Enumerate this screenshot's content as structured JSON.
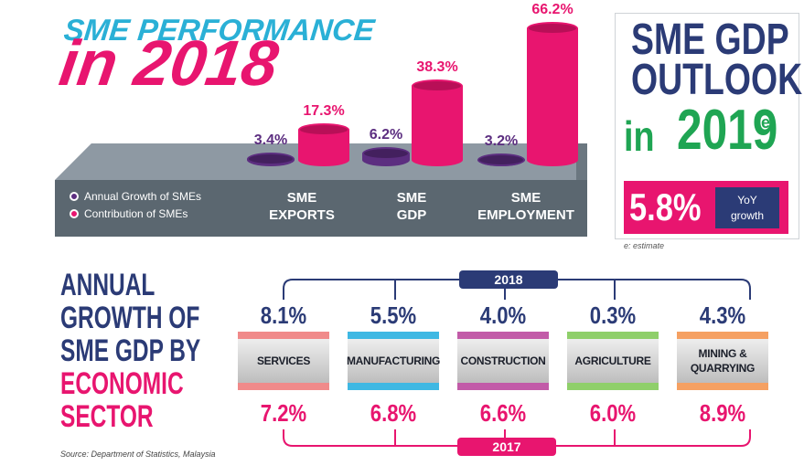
{
  "title": {
    "line1": "SME PERFORMANCE",
    "line2": "in 2018"
  },
  "chart_data": {
    "type": "bar",
    "categories": [
      "SME EXPORTS",
      "SME GDP",
      "SME EMPLOYMENT"
    ],
    "series": [
      {
        "name": "Annual Growth of SMEs",
        "values": [
          3.4,
          6.2,
          3.2
        ],
        "labels": [
          "3.4%",
          "6.2%",
          "3.2%"
        ],
        "color": "#5c2e80"
      },
      {
        "name": "Contribution of SMEs",
        "values": [
          17.3,
          38.3,
          66.2
        ],
        "labels": [
          "17.3%",
          "38.3%",
          "66.2%"
        ],
        "color": "#e8156f"
      }
    ],
    "category_lines": [
      [
        "SME",
        "EXPORTS"
      ],
      [
        "SME",
        "GDP"
      ],
      [
        "SME",
        "EMPLOYMENT"
      ]
    ],
    "legend": [
      "Annual Growth of SMEs",
      "Contribution of SMEs"
    ],
    "ylim": [
      0,
      70
    ]
  },
  "outlook": {
    "line1": "SME GDP",
    "line2": "OUTLOOK",
    "in": "in",
    "year": "2019",
    "superscript": "e",
    "growth_value": "5.8%",
    "growth_label_1": "YoY",
    "growth_label_2": "growth",
    "estimate_note": "e: estimate"
  },
  "annual_growth": {
    "title_lines": [
      "ANNUAL",
      "GROWTH OF",
      "SME GDP BY"
    ],
    "title_pink_lines": [
      "ECONOMIC",
      "SECTOR"
    ],
    "year_top": "2018",
    "year_bottom": "2017",
    "sectors": [
      {
        "name": "SERVICES",
        "name_line2": "",
        "v2018": "8.1%",
        "v2017": "7.2%",
        "color": "#f08a8a"
      },
      {
        "name": "MANUFACTURING",
        "name_line2": "",
        "v2018": "5.5%",
        "v2017": "6.8%",
        "color": "#3fb8e3"
      },
      {
        "name": "CONSTRUCTION",
        "name_line2": "",
        "v2018": "4.0%",
        "v2017": "6.6%",
        "color": "#c25ba8"
      },
      {
        "name": "AGRICULTURE",
        "name_line2": "",
        "v2018": "0.3%",
        "v2017": "6.0%",
        "color": "#8fcf6a"
      },
      {
        "name": "MINING &",
        "name_line2": "QUARRYING",
        "v2018": "4.3%",
        "v2017": "8.9%",
        "color": "#f5a062"
      }
    ]
  },
  "source": "Source: Department of Statistics, Malaysia",
  "colors": {
    "navy": "#2b3b76",
    "pink": "#e8156f",
    "green": "#1fa553",
    "cyan": "#2ab0d6",
    "purple": "#5c2e80"
  }
}
